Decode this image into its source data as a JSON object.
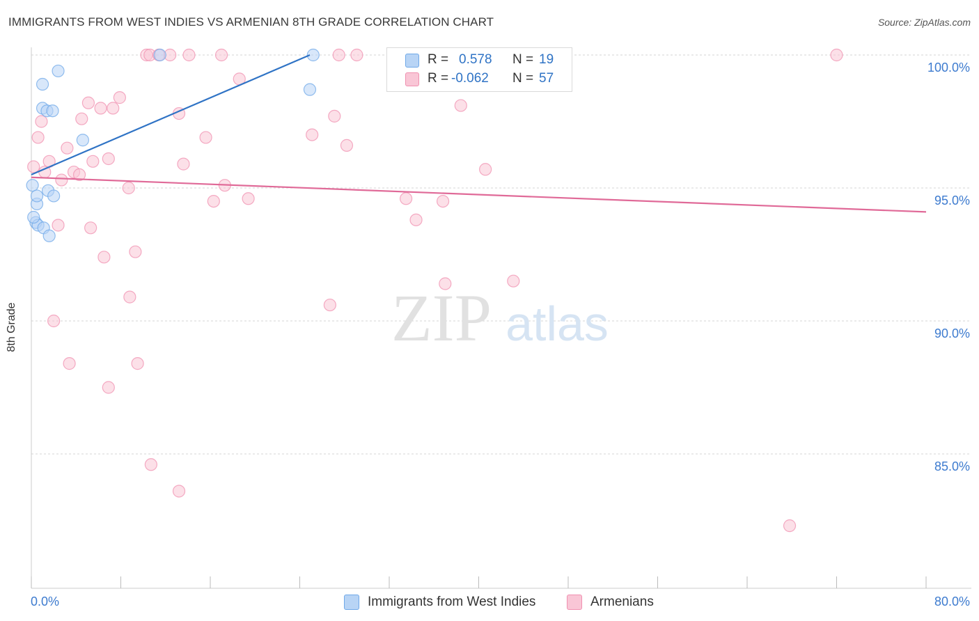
{
  "title": "IMMIGRANTS FROM WEST INDIES VS ARMENIAN 8TH GRADE CORRELATION CHART",
  "source": "Source: ZipAtlas.com",
  "watermark": {
    "zip": "ZIP",
    "atlas": "atlas"
  },
  "legend_top": {
    "rows": [
      {
        "r_label": "R =",
        "r_value": "0.578",
        "n_label": "N =",
        "n_value": "19",
        "color": "#b8d4f5"
      },
      {
        "r_label": "R =",
        "r_value": "-0.062",
        "n_label": "N =",
        "n_value": "57",
        "color": "#f9c6d6"
      }
    ]
  },
  "legend_bottom": {
    "items": [
      {
        "label": "Immigrants from West Indies",
        "color": "#b8d4f5"
      },
      {
        "label": "Armenians",
        "color": "#f9c6d6"
      }
    ]
  },
  "chart_data": {
    "type": "scatter",
    "title": "IMMIGRANTS FROM WEST INDIES VS ARMENIAN 8TH GRADE CORRELATION CHART",
    "xlabel": "",
    "ylabel": "8th Grade",
    "xlim": [
      0,
      80
    ],
    "ylim": [
      80.5,
      100.5
    ],
    "x_tick_labels": [
      {
        "value": 0,
        "label": "0.0%"
      },
      {
        "value": 80,
        "label": "80.0%"
      }
    ],
    "y_tick_labels": [
      {
        "value": 100,
        "label": "100.0%"
      },
      {
        "value": 95,
        "label": "95.0%"
      },
      {
        "value": 90,
        "label": "90.0%"
      },
      {
        "value": 85,
        "label": "85.0%"
      }
    ],
    "x_minor_ticks": [
      0,
      8,
      16,
      24,
      32,
      40,
      48,
      56,
      64,
      72,
      80
    ],
    "grid": true,
    "legend_position": "top-center",
    "series": [
      {
        "name": "Immigrants from West Indies",
        "color": "#6fa8e8",
        "fill": "#b8d4f5",
        "line_color": "#2f73c5",
        "points": [
          [
            0.1,
            95.1
          ],
          [
            0.4,
            93.7
          ],
          [
            0.5,
            94.4
          ],
          [
            0.5,
            94.7
          ],
          [
            0.6,
            93.6
          ],
          [
            1.0,
            98.9
          ],
          [
            1.0,
            98.0
          ],
          [
            1.1,
            93.5
          ],
          [
            1.4,
            97.9
          ],
          [
            1.5,
            94.9
          ],
          [
            1.6,
            93.2
          ],
          [
            1.9,
            97.9
          ],
          [
            2.0,
            94.7
          ],
          [
            2.4,
            99.4
          ],
          [
            4.6,
            96.8
          ],
          [
            11.5,
            100.0
          ],
          [
            24.9,
            98.7
          ],
          [
            25.2,
            100.0
          ],
          [
            0.2,
            93.9
          ]
        ],
        "trend": {
          "x": [
            0,
            24.9
          ],
          "y": [
            95.5,
            100.0
          ]
        }
      },
      {
        "name": "Armenians",
        "color": "#f090b0",
        "fill": "#f9c6d6",
        "line_color": "#e06a98",
        "points": [
          [
            0.2,
            95.8
          ],
          [
            0.6,
            96.9
          ],
          [
            0.9,
            97.5
          ],
          [
            1.2,
            95.6
          ],
          [
            1.6,
            96.0
          ],
          [
            2.0,
            90.0
          ],
          [
            2.4,
            93.6
          ],
          [
            2.7,
            95.3
          ],
          [
            3.2,
            96.5
          ],
          [
            3.4,
            88.4
          ],
          [
            3.8,
            95.6
          ],
          [
            4.3,
            95.5
          ],
          [
            4.5,
            97.6
          ],
          [
            5.1,
            98.2
          ],
          [
            5.3,
            93.5
          ],
          [
            5.5,
            96.0
          ],
          [
            6.2,
            98.0
          ],
          [
            6.5,
            92.4
          ],
          [
            6.9,
            87.5
          ],
          [
            6.9,
            96.1
          ],
          [
            7.3,
            98.0
          ],
          [
            7.9,
            98.4
          ],
          [
            8.7,
            95.0
          ],
          [
            8.8,
            90.9
          ],
          [
            9.3,
            92.6
          ],
          [
            9.5,
            88.4
          ],
          [
            10.3,
            100.0
          ],
          [
            10.6,
            100.0
          ],
          [
            10.7,
            84.6
          ],
          [
            11.4,
            100.0
          ],
          [
            12.4,
            100.0
          ],
          [
            13.2,
            97.8
          ],
          [
            13.2,
            83.6
          ],
          [
            13.6,
            95.9
          ],
          [
            14.1,
            100.0
          ],
          [
            15.6,
            96.9
          ],
          [
            16.3,
            94.5
          ],
          [
            17.0,
            100.0
          ],
          [
            17.3,
            95.1
          ],
          [
            18.6,
            99.1
          ],
          [
            19.4,
            94.6
          ],
          [
            25.1,
            97.0
          ],
          [
            26.7,
            90.6
          ],
          [
            27.1,
            97.7
          ],
          [
            27.5,
            100.0
          ],
          [
            28.2,
            96.6
          ],
          [
            29.1,
            100.0
          ],
          [
            32.8,
            100.0
          ],
          [
            33.5,
            94.6
          ],
          [
            34.4,
            93.8
          ],
          [
            36.8,
            94.5
          ],
          [
            37.0,
            91.4
          ],
          [
            38.4,
            98.1
          ],
          [
            40.6,
            95.7
          ],
          [
            43.1,
            91.5
          ],
          [
            67.8,
            82.3
          ],
          [
            72.0,
            100.0
          ]
        ],
        "trend": {
          "x": [
            0,
            80
          ],
          "y": [
            95.4,
            94.1
          ]
        }
      }
    ]
  }
}
